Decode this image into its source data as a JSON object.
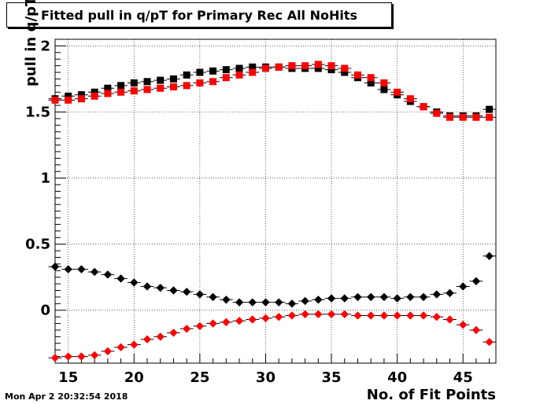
{
  "header": {
    "title": "Fitted pull in q/pT for Primary Rec All NoHits"
  },
  "footer": {
    "date": "Mon Apr  2 20:32:54 2018"
  },
  "chart_data": {
    "type": "scatter",
    "title": "Fitted pull in q/pT for Primary Rec All NoHits",
    "xlabel": "No. of Fit Points",
    "ylabel": "pull in q/pT",
    "xlim": [
      14,
      47.5
    ],
    "ylim": [
      -0.4,
      2.05
    ],
    "xticks": [
      15,
      20,
      25,
      30,
      35,
      40,
      45
    ],
    "yticks": [
      0,
      0.5,
      1,
      1.5,
      2
    ],
    "ytick_labels": [
      "0",
      "0.5",
      "1",
      "1.5",
      "2"
    ],
    "grid": true,
    "x": [
      14,
      15,
      16,
      17,
      18,
      19,
      20,
      21,
      22,
      23,
      24,
      25,
      26,
      27,
      28,
      29,
      30,
      31,
      32,
      33,
      34,
      35,
      36,
      37,
      38,
      39,
      40,
      41,
      42,
      43,
      44,
      45,
      46,
      47
    ],
    "series": [
      {
        "color": "#000000",
        "marker": "square",
        "values": [
          1.6,
          1.62,
          1.63,
          1.65,
          1.68,
          1.7,
          1.72,
          1.73,
          1.74,
          1.75,
          1.78,
          1.8,
          1.81,
          1.82,
          1.83,
          1.84,
          1.84,
          1.84,
          1.83,
          1.83,
          1.83,
          1.82,
          1.8,
          1.76,
          1.72,
          1.67,
          1.63,
          1.58,
          1.54,
          1.5,
          1.47,
          1.47,
          1.47,
          1.52
        ]
      },
      {
        "color": "#ff0000",
        "marker": "square",
        "values": [
          1.59,
          1.59,
          1.6,
          1.62,
          1.64,
          1.65,
          1.66,
          1.67,
          1.68,
          1.69,
          1.7,
          1.72,
          1.73,
          1.76,
          1.78,
          1.8,
          1.83,
          1.84,
          1.85,
          1.85,
          1.86,
          1.85,
          1.83,
          1.78,
          1.76,
          1.72,
          1.65,
          1.6,
          1.54,
          1.49,
          1.46,
          1.46,
          1.46,
          1.46
        ]
      },
      {
        "color": "#000000",
        "marker": "diamond",
        "values": [
          0.33,
          0.31,
          0.31,
          0.29,
          0.27,
          0.24,
          0.21,
          0.18,
          0.17,
          0.15,
          0.14,
          0.12,
          0.1,
          0.08,
          0.06,
          0.06,
          0.06,
          0.06,
          0.05,
          0.07,
          0.08,
          0.09,
          0.09,
          0.1,
          0.1,
          0.1,
          0.09,
          0.1,
          0.1,
          0.12,
          0.13,
          0.18,
          0.22,
          0.41
        ]
      },
      {
        "color": "#ff0000",
        "marker": "diamond",
        "values": [
          -0.36,
          -0.35,
          -0.35,
          -0.34,
          -0.31,
          -0.28,
          -0.26,
          -0.22,
          -0.2,
          -0.17,
          -0.14,
          -0.12,
          -0.1,
          -0.09,
          -0.08,
          -0.07,
          -0.06,
          -0.05,
          -0.04,
          -0.03,
          -0.03,
          -0.03,
          -0.03,
          -0.04,
          -0.04,
          -0.04,
          -0.04,
          -0.04,
          -0.04,
          -0.05,
          -0.07,
          -0.11,
          -0.15,
          -0.24
        ]
      }
    ]
  }
}
